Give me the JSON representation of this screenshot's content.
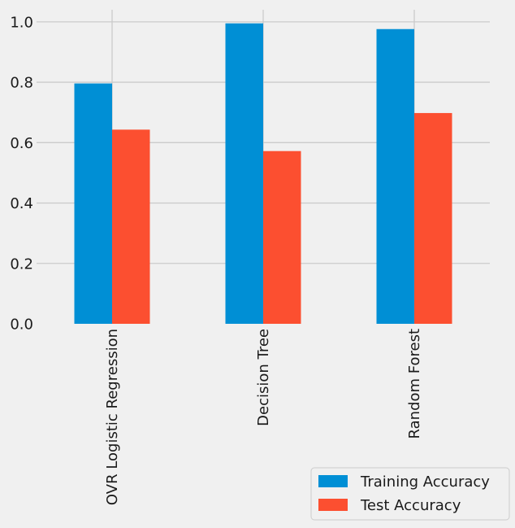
{
  "chart_data": {
    "type": "bar",
    "title": "",
    "xlabel": "",
    "ylabel": "",
    "categories": [
      "OVR Logistic Regression",
      "Decision Tree",
      "Random Forest"
    ],
    "series": [
      {
        "name": "Training Accuracy",
        "values": [
          0.796,
          0.995,
          0.976
        ],
        "color": "#008fd5"
      },
      {
        "name": "Test Accuracy",
        "values": [
          0.643,
          0.572,
          0.698
        ],
        "color": "#fc4f30"
      }
    ],
    "ylim": [
      0,
      1.04
    ],
    "yticks": [
      0.0,
      0.2,
      0.4,
      0.6,
      0.8,
      1.0
    ],
    "ytick_labels": [
      "0.0",
      "0.2",
      "0.4",
      "0.6",
      "0.8",
      "1.0"
    ],
    "grid": true,
    "legend_position": "bottom-right"
  },
  "colors": {
    "background": "#f0f0f0",
    "grid": "#cbcbcb"
  }
}
